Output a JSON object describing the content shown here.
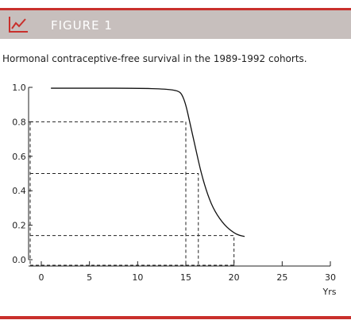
{
  "figure": {
    "label": "FIGURE 1",
    "caption": "Hormonal contraceptive-free survival in the 1989-1992 cohorts.",
    "accent_color": "#c9302c",
    "header_color": "#c7bfbd",
    "icon": "line-chart-icon"
  },
  "chart_data": {
    "type": "line",
    "title": "",
    "xlabel": "Yrs",
    "ylabel": "",
    "xlim": [
      0,
      30
    ],
    "ylim": [
      0,
      1
    ],
    "x_ticks": [
      0,
      5,
      10,
      15,
      20,
      25,
      30
    ],
    "y_ticks": [
      0.0,
      0.2,
      0.4,
      0.6,
      0.8,
      1.0
    ],
    "x_tick_labels": [
      "0",
      "5",
      "10",
      "15",
      "20",
      "25",
      "30"
    ],
    "y_tick_labels": [
      "0.0",
      "0.2",
      "0.4",
      "0.6",
      "0.8",
      "1.0"
    ],
    "grid": false,
    "series": [
      {
        "x": [
          1,
          5,
          10,
          13,
          14.2,
          14.6,
          15,
          15.4,
          16,
          16.6,
          17.3,
          18,
          19,
          20,
          20.6,
          21.1
        ],
        "y": [
          0.995,
          0.995,
          0.995,
          0.99,
          0.98,
          0.96,
          0.9,
          0.8,
          0.65,
          0.5,
          0.37,
          0.28,
          0.2,
          0.155,
          0.14,
          0.135
        ]
      }
    ],
    "reference_lines": [
      {
        "x": 15.0,
        "y": 0.8
      },
      {
        "x": 16.3,
        "y": 0.5
      },
      {
        "x": 20.0,
        "y": 0.14
      }
    ]
  }
}
